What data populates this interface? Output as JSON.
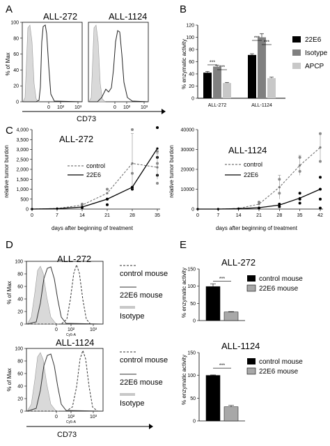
{
  "panel_letters": {
    "a": "A",
    "b": "B",
    "c": "C",
    "d": "D",
    "e": "E"
  },
  "panelA": {
    "ylabel": "% of Max",
    "xlabel": "CD73",
    "left_title": "ALL-272",
    "right_title": "ALL-1124",
    "yticks": [
      "0",
      "20",
      "40",
      "60",
      "80",
      "100"
    ],
    "xticks": [
      "0",
      "10²",
      "10³"
    ]
  },
  "panelB": {
    "ylabel": "% enzymatic activity",
    "yticks": [
      "0",
      "20",
      "40",
      "60",
      "80",
      "100",
      "120"
    ],
    "legend": [
      {
        "label": "22E6",
        "color": "#000000"
      },
      {
        "label": "Isotype",
        "color": "#808080"
      },
      {
        "label": "APCP",
        "color": "#c8c8c8"
      }
    ],
    "sig": "***"
  },
  "panelC": {
    "ylabel": "relative tumor burdon",
    "xlabel": "days after beginning of treatment",
    "left_title": "ALL-272",
    "right_title": "ALL-1124",
    "legend_control": "control",
    "legend_22e6": "22E6",
    "left_yticks": [
      "0",
      "500",
      "1,000",
      "1,500",
      "2,000",
      "2,500",
      "3,000",
      "3,500",
      "4,000"
    ],
    "right_yticks": [
      "0",
      "10000",
      "20000",
      "30000",
      "40000"
    ],
    "left_xticks": [
      "0",
      "7",
      "14",
      "21",
      "28",
      "35"
    ],
    "right_xticks": [
      "0",
      "7",
      "14",
      "21",
      "28",
      "35",
      "42"
    ]
  },
  "panelD": {
    "ylabel": "% of Max",
    "xlabel": "CD73",
    "top_title": "ALL-272",
    "bottom_title": "ALL-1124",
    "yticks": [
      "0",
      "20",
      "40",
      "60",
      "80",
      "100"
    ],
    "xticks": [
      "0",
      "10²",
      "10³"
    ],
    "axis_small": "Cy5-A",
    "legend_control": "control mouse",
    "legend_22e6": "22E6 mouse",
    "legend_iso": "Isotype"
  },
  "panelE": {
    "ylabel": "% enzymatic activity",
    "top_title": "ALL-272",
    "bottom_title": "ALL-1124",
    "top_yticks": [
      "0",
      "50",
      "100",
      "150"
    ],
    "bottom_yticks": [
      "0",
      "50",
      "100",
      "150"
    ],
    "legend_control": "control mouse",
    "legend_22e6": "22E6 mouse",
    "sig": "***"
  },
  "chart_data": [
    {
      "type": "bar",
      "panel": "B",
      "categories": [
        "ALL-272",
        "ALL-1124"
      ],
      "ylim": [
        0,
        120
      ],
      "series": [
        {
          "name": "22E6",
          "values": [
            42,
            71
          ],
          "color": "#000000"
        },
        {
          "name": "Isotype",
          "values": [
            52,
            100
          ],
          "color": "#808080"
        },
        {
          "name": "APCP",
          "values": [
            25,
            33
          ],
          "color": "#c8c8c8"
        }
      ]
    },
    {
      "type": "line",
      "panel": "C-left",
      "title": "ALL-272",
      "xlabel": "days after beginning of treatment",
      "ylabel": "relative tumor burdon",
      "ylim": [
        0,
        4000
      ],
      "x": [
        0,
        7,
        14,
        21,
        28,
        35
      ],
      "series": [
        {
          "name": "control",
          "values": [
            0,
            30,
            200,
            800,
            2300,
            2100
          ]
        },
        {
          "name": "22E6",
          "values": [
            0,
            20,
            100,
            500,
            1100,
            3050
          ]
        }
      ]
    },
    {
      "type": "line",
      "panel": "C-right",
      "title": "ALL-1124",
      "xlabel": "days after beginning of treatment",
      "ylabel": "relative tumor burdon",
      "ylim": [
        0,
        40000
      ],
      "x": [
        0,
        7,
        14,
        21,
        28,
        35,
        42
      ],
      "series": [
        {
          "name": "control",
          "values": [
            0,
            0,
            300,
            2500,
            11000,
            22000,
            31000
          ]
        },
        {
          "name": "22E6",
          "values": [
            0,
            0,
            200,
            700,
            2000,
            5500,
            10000
          ]
        }
      ]
    },
    {
      "type": "bar",
      "panel": "E-top",
      "title": "ALL-272",
      "ylabel": "% enzymatic activity",
      "ylim": [
        0,
        150
      ],
      "categories": [
        "control mouse",
        "22E6 mouse"
      ],
      "values": [
        99,
        25
      ],
      "colors": [
        "#000000",
        "#a8a8a8"
      ]
    },
    {
      "type": "bar",
      "panel": "E-bottom",
      "title": "ALL-1124",
      "ylabel": "% enzymatic activity",
      "ylim": [
        0,
        150
      ],
      "categories": [
        "control mouse",
        "22E6 mouse"
      ],
      "values": [
        100,
        31
      ],
      "colors": [
        "#000000",
        "#a8a8a8"
      ]
    }
  ]
}
